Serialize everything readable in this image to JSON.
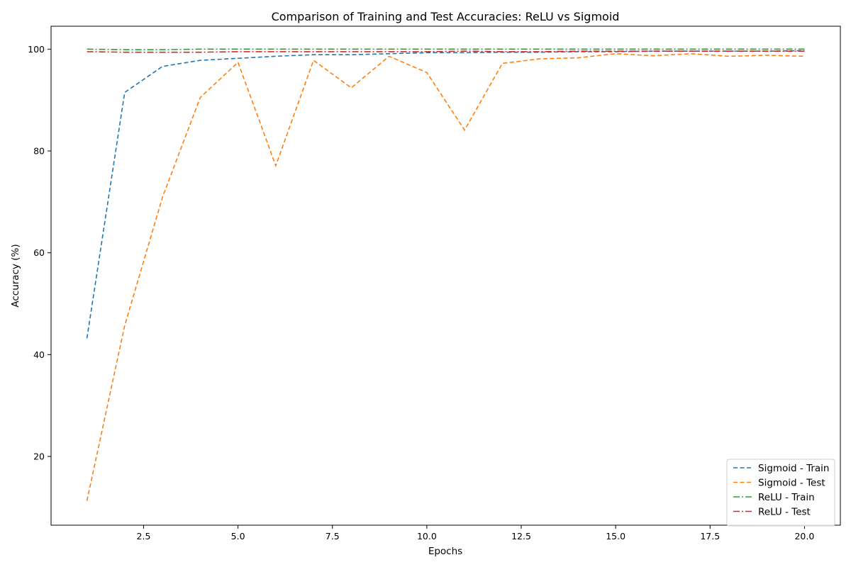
{
  "chart_data": {
    "type": "line",
    "title": "Comparison of Training and Test Accuracies: ReLU vs Sigmoid",
    "xlabel": "Epochs",
    "ylabel": "Accuracy (%)",
    "xlim": [
      0.05,
      20.95
    ],
    "ylim": [
      6.5,
      104.5
    ],
    "xticks": [
      2.5,
      5.0,
      7.5,
      10.0,
      12.5,
      15.0,
      17.5,
      20.0
    ],
    "xtick_labels": [
      "2.5",
      "5.0",
      "7.5",
      "10.0",
      "12.5",
      "15.0",
      "17.5",
      "20.0"
    ],
    "yticks": [
      20,
      40,
      60,
      80,
      100
    ],
    "ytick_labels": [
      "20",
      "40",
      "60",
      "80",
      "100"
    ],
    "grid": false,
    "legend_position": "bottom-right",
    "x": [
      1,
      2,
      3,
      4,
      5,
      6,
      7,
      8,
      9,
      10,
      11,
      12,
      13,
      14,
      15,
      16,
      17,
      18,
      19,
      20
    ],
    "series": [
      {
        "name": "Sigmoid - Train",
        "color": "#1f77b4",
        "dash": "dashed",
        "values": [
          43.2,
          91.5,
          96.6,
          97.8,
          98.2,
          98.6,
          98.9,
          98.9,
          99.1,
          99.3,
          99.3,
          99.4,
          99.4,
          99.5,
          99.5,
          99.6,
          99.6,
          99.6,
          99.6,
          99.7
        ]
      },
      {
        "name": "Sigmoid - Test",
        "color": "#ff7f0e",
        "dash": "dashed",
        "values": [
          11.3,
          45.7,
          70.9,
          90.5,
          97.4,
          77.1,
          97.8,
          92.4,
          98.6,
          95.4,
          84.1,
          97.2,
          98.1,
          98.3,
          99.1,
          98.7,
          99.1,
          98.6,
          98.8,
          98.6
        ]
      },
      {
        "name": "ReLU - Train",
        "color": "#2ca02c",
        "dash": "dashdot",
        "values": [
          100.0,
          99.9,
          99.9,
          100.0,
          100.0,
          100.0,
          100.0,
          100.0,
          100.0,
          100.0,
          100.0,
          100.0,
          100.0,
          100.0,
          100.0,
          100.0,
          100.0,
          100.0,
          100.0,
          100.0
        ]
      },
      {
        "name": "ReLU - Test",
        "color": "#d62728",
        "dash": "dashdot",
        "values": [
          99.5,
          99.4,
          99.4,
          99.4,
          99.5,
          99.5,
          99.5,
          99.5,
          99.5,
          99.5,
          99.6,
          99.5,
          99.5,
          99.6,
          99.6,
          99.6,
          99.6,
          99.6,
          99.6,
          99.6
        ]
      }
    ]
  }
}
